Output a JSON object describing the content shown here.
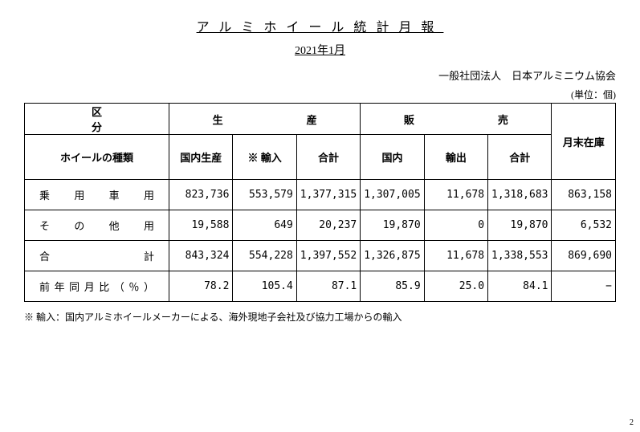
{
  "title": "アルミホイール統計月報",
  "subtitle": "2021年1月",
  "org": "一般社団法人　日本アルミニウム協会",
  "unit": "(単位：個)",
  "headers": {
    "category": "区　　　分",
    "production": "生　　産",
    "sales": "販　　売",
    "inventory": "月末在庫",
    "wheel_type": "ホイールの種類",
    "dom_prod": "国内生産",
    "import": "※ 輸入",
    "p_total": "合計",
    "domestic": "国内",
    "export": "輸出",
    "s_total": "合計"
  },
  "rows": [
    {
      "label": "乗用車用",
      "dom_prod": "823,736",
      "import": "553,579",
      "p_total": "1,377,315",
      "domestic": "1,307,005",
      "export": "11,678",
      "s_total": "1,318,683",
      "inventory": "863,158"
    },
    {
      "label": "その他用",
      "dom_prod": "19,588",
      "import": "649",
      "p_total": "20,237",
      "domestic": "19,870",
      "export": "0",
      "s_total": "19,870",
      "inventory": "6,532"
    },
    {
      "label": "合計",
      "dom_prod": "843,324",
      "import": "554,228",
      "p_total": "1,397,552",
      "domestic": "1,326,875",
      "export": "11,678",
      "s_total": "1,338,553",
      "inventory": "869,690"
    }
  ],
  "yoy": {
    "label": "前年同月比（％）",
    "dom_prod": "78.2",
    "import": "105.4",
    "p_total": "87.1",
    "domestic": "85.9",
    "export": "25.0",
    "s_total": "84.1",
    "inventory": "−"
  },
  "footnote": "※ 輸入：国内アルミホイールメーカーによる、海外現地子会社及び協力工場からの輸入",
  "pagenum": "2"
}
